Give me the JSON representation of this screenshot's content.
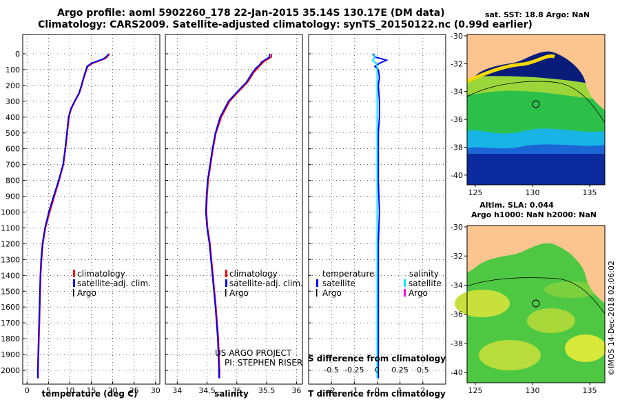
{
  "header": {
    "title_line1": "Argo profile: aoml 5902260_178 22-Jan-2015 35.14S 130.17E (DM data)",
    "title_line2": "Climatology: CARS2009. Satellite-adjusted climatology: synTS_20150122.nc (0.99d earlier)"
  },
  "colors": {
    "climatology": "#ff0000",
    "satellite": "#0000ff",
    "argo": "#000000",
    "sat_salinity": "#00e5ff",
    "argo_salinity": "#ff00ff"
  },
  "chart_data": [
    {
      "type": "line",
      "name": "temperature-profile",
      "xlabel": "temperature (deg C)",
      "ylabel": "depth",
      "xlim": [
        -1,
        31
      ],
      "ylim": [
        2100,
        0
      ],
      "xticks": [
        "0",
        "5",
        "10",
        "15",
        "20",
        "25",
        "30"
      ],
      "xtick_values": [
        0,
        5,
        10,
        15,
        20,
        25,
        30
      ],
      "yticks": [
        "0",
        "100",
        "200",
        "300",
        "400",
        "500",
        "600",
        "700",
        "800",
        "900",
        "1000",
        "1100",
        "1200",
        "1300",
        "1400",
        "1500",
        "1600",
        "1700",
        "1800",
        "1900",
        "2000"
      ],
      "ytick_values": [
        0,
        100,
        200,
        300,
        400,
        500,
        600,
        700,
        800,
        900,
        1000,
        1100,
        1200,
        1300,
        1400,
        1500,
        1600,
        1700,
        1800,
        1900,
        2000
      ],
      "legend": [
        "climatology",
        "satellite-adj. clim.",
        "Argo"
      ],
      "series": [
        {
          "name": "climatology",
          "depth": [
            0,
            10,
            30,
            60,
            80,
            100,
            150,
            200,
            250,
            300,
            350,
            400,
            500,
            600,
            700,
            800,
            900,
            1000,
            1100,
            1200,
            1300,
            1400,
            1500,
            1600,
            1700,
            1800,
            1900,
            2000,
            2050
          ],
          "values": [
            19.2,
            19.0,
            18.3,
            15.3,
            14.2,
            13.9,
            13.3,
            12.8,
            12.2,
            11.2,
            10.3,
            9.8,
            9.4,
            9.0,
            8.5,
            7.5,
            6.4,
            5.3,
            4.3,
            3.7,
            3.4,
            3.2,
            3.1,
            3.0,
            2.9,
            2.8,
            2.7,
            2.6,
            2.6
          ]
        },
        {
          "name": "satellite-adj. clim.",
          "depth": [
            0,
            10,
            30,
            60,
            80,
            100,
            150,
            200,
            250,
            300,
            350,
            400,
            500,
            600,
            700,
            800,
            900,
            1000,
            1100,
            1200,
            1300,
            1400,
            1500,
            1600,
            1700,
            1800,
            1900,
            2000,
            2050
          ],
          "values": [
            19.0,
            18.8,
            18.0,
            15.0,
            14.0,
            13.8,
            13.2,
            12.7,
            12.1,
            11.1,
            10.2,
            9.7,
            9.3,
            8.9,
            8.4,
            7.4,
            6.2,
            5.1,
            4.2,
            3.6,
            3.3,
            3.1,
            3.0,
            2.9,
            2.8,
            2.7,
            2.6,
            2.5,
            2.5
          ]
        }
      ]
    },
    {
      "type": "line",
      "name": "salinity-profile",
      "xlabel": "salinity",
      "xlim": [
        33.8,
        36.1
      ],
      "ylim": [
        2100,
        0
      ],
      "xticks": [
        "34",
        "34.5",
        "35",
        "35.5",
        "36"
      ],
      "xtick_values": [
        34,
        34.5,
        35,
        35.5,
        36
      ],
      "legend": [
        "climatology",
        "satellite-adj. clim.",
        "Argo"
      ],
      "series": [
        {
          "name": "climatology",
          "depth": [
            0,
            20,
            50,
            70,
            90,
            120,
            180,
            250,
            300,
            400,
            500,
            600,
            700,
            800,
            900,
            1000,
            1100,
            1200,
            1400,
            1600,
            1800,
            2000,
            2050
          ],
          "values": [
            35.58,
            35.58,
            35.45,
            35.4,
            35.35,
            35.28,
            35.18,
            35.0,
            34.88,
            34.74,
            34.65,
            34.6,
            34.56,
            34.52,
            34.5,
            34.49,
            34.51,
            34.55,
            34.6,
            34.65,
            34.69,
            34.71,
            34.71
          ]
        },
        {
          "name": "satellite-adj. clim.",
          "depth": [
            0,
            20,
            50,
            70,
            90,
            120,
            180,
            250,
            300,
            400,
            500,
            600,
            700,
            800,
            900,
            1000,
            1100,
            1200,
            1400,
            1600,
            1800,
            2000,
            2050
          ],
          "values": [
            35.55,
            35.55,
            35.42,
            35.38,
            35.32,
            35.26,
            35.16,
            34.98,
            34.86,
            34.72,
            34.64,
            34.59,
            34.55,
            34.51,
            34.49,
            34.48,
            34.5,
            34.54,
            34.59,
            34.64,
            34.68,
            34.7,
            34.7
          ]
        }
      ],
      "annotation": [
        "US ARGO PROJECT",
        "PI: STEPHEN RISER"
      ]
    },
    {
      "type": "line",
      "name": "difference-profile",
      "xlabel": "T difference from climatology",
      "xlabel2": "S difference from climatology",
      "xlim": [
        -3,
        3
      ],
      "ylim": [
        2100,
        0
      ],
      "xticks": [
        "-2",
        "-1",
        "0",
        "1",
        "2"
      ],
      "xtick_values": [
        -2,
        -1,
        0,
        1,
        2
      ],
      "s_ticks": [
        "-0.5",
        "-0.25",
        "0",
        "0.25",
        "0.5"
      ],
      "legend_temperature": [
        "temperature",
        "satellite",
        "Argo"
      ],
      "legend_salinity": [
        "salinity",
        "satellite",
        "Argo"
      ],
      "series": [
        {
          "name": "T satellite",
          "depth": [
            0,
            20,
            40,
            60,
            80,
            100,
            150,
            200,
            300,
            400,
            500,
            600,
            800,
            1000,
            1200,
            1500,
            1800,
            2050
          ],
          "values": [
            -0.2,
            -0.1,
            0.4,
            0.1,
            -0.1,
            0.05,
            0.1,
            0.05,
            0.1,
            0.1,
            0.05,
            0.05,
            0.05,
            0.1,
            0.05,
            0.05,
            0.05,
            0.05
          ]
        },
        {
          "name": "S satellite",
          "depth": [
            0,
            20,
            40,
            60,
            80,
            100,
            200,
            400,
            600,
            800,
            1000,
            1200,
            1500,
            1800,
            2050
          ],
          "values": [
            -0.15,
            -0.1,
            -0.2,
            -0.05,
            0.0,
            0.0,
            0.0,
            0.0,
            0.0,
            0.0,
            0.0,
            0.0,
            0.0,
            0.0,
            0.0
          ]
        }
      ]
    }
  ],
  "maps": [
    {
      "name": "sst-map",
      "title_line1": "sat.  SST: 18.8  Argo: NaN",
      "title_line2": "",
      "ylabels": [
        "-30",
        "-32",
        "-34",
        "-36",
        "-38",
        "-40"
      ],
      "xlabels": [
        "125",
        "130",
        "135"
      ],
      "float_lon": 130.17,
      "float_lat": -35.14
    },
    {
      "name": "sla-map",
      "title_line1": "Altim. SLA: 0.044",
      "title_line2": "Argo h1000: NaN h2000: NaN",
      "ylabels": [
        "-30",
        "-32",
        "-34",
        "-36",
        "-38",
        "-40"
      ],
      "xlabels": [
        "125",
        "130",
        "135"
      ],
      "float_lon": 130.17,
      "float_lat": -35.14
    }
  ],
  "footer": {
    "credit": "©IMOS 14-Dec-2018 02:06:02"
  }
}
